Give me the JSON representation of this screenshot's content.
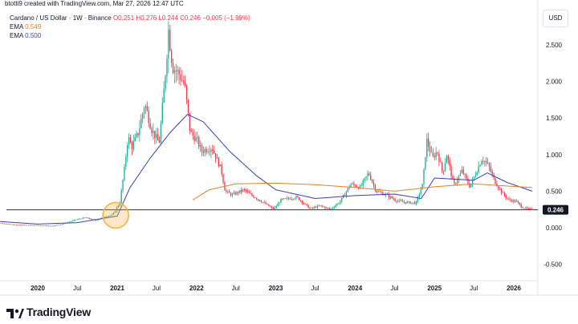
{
  "header": {
    "created_by": "btotti9 created with TradingView.com, Mar 27, 2026 12:47 UTC"
  },
  "legend": {
    "symbol": "Cardano / US Dollar · 1W · Binance",
    "ohlc": "O0.251  H0.276  L0.244  C0.246  −0.005 (−1.99%)",
    "ema_fast_label": "EMA",
    "ema_fast_value": "0.549",
    "ema_slow_label": "EMA",
    "ema_slow_value": "0.500"
  },
  "price_axis": {
    "currency": "USD",
    "last_price_badge": "0.246"
  },
  "brand": {
    "name": "TradingView"
  },
  "colors": {
    "up": "#22ab94",
    "down": "#f23645",
    "up_fill": "#089981",
    "ema_fast": "#e67e22",
    "ema_slow": "#3a3fb8",
    "support_line": "#434651",
    "highlight_circle": "#f5b041",
    "badge_bg": "#131722"
  },
  "chart_data": {
    "type": "candlestick",
    "x_unit": "date (weekly)",
    "y_unit": "USD",
    "xlim": [
      "2019-05",
      "2026-05"
    ],
    "ylim": [
      -0.6,
      2.75
    ],
    "x_ticks": [
      {
        "date": "2020-01-01",
        "label": "2020"
      },
      {
        "date": "2020-07-01",
        "label": "Jul"
      },
      {
        "date": "2021-01-01",
        "label": "2021"
      },
      {
        "date": "2021-07-01",
        "label": "Jul"
      },
      {
        "date": "2022-01-01",
        "label": "2022"
      },
      {
        "date": "2022-07-01",
        "label": "Jul"
      },
      {
        "date": "2023-01-01",
        "label": "2023"
      },
      {
        "date": "2023-07-01",
        "label": "Jul"
      },
      {
        "date": "2024-01-01",
        "label": "2024"
      },
      {
        "date": "2024-07-01",
        "label": "Jul"
      },
      {
        "date": "2025-01-01",
        "label": "2025"
      },
      {
        "date": "2025-07-01",
        "label": "Jul"
      },
      {
        "date": "2026-01-01",
        "label": "2026"
      }
    ],
    "y_ticks": [
      {
        "value": 2.5,
        "label": "2.500"
      },
      {
        "value": 2.0,
        "label": "2.000"
      },
      {
        "value": 1.5,
        "label": "1.500"
      },
      {
        "value": 1.0,
        "label": "1.000"
      },
      {
        "value": 0.5,
        "label": "0.500"
      },
      {
        "value": 0.0,
        "label": "0.000"
      },
      {
        "value": -0.5,
        "label": "-0.500"
      }
    ],
    "price_path": [
      [
        "2019-05-01",
        0.08
      ],
      [
        "2019-07-01",
        0.065
      ],
      [
        "2019-10-01",
        0.04
      ],
      [
        "2020-01-01",
        0.035
      ],
      [
        "2020-03-15",
        0.025
      ],
      [
        "2020-05-01",
        0.05
      ],
      [
        "2020-07-01",
        0.11
      ],
      [
        "2020-08-15",
        0.14
      ],
      [
        "2020-10-01",
        0.1
      ],
      [
        "2020-11-20",
        0.16
      ],
      [
        "2020-12-20",
        0.18
      ],
      [
        "2021-01-20",
        0.35
      ],
      [
        "2021-02-10",
        0.8
      ],
      [
        "2021-02-27",
        1.25
      ],
      [
        "2021-03-15",
        1.1
      ],
      [
        "2021-04-15",
        1.3
      ],
      [
        "2021-05-15",
        1.7
      ],
      [
        "2021-06-15",
        1.35
      ],
      [
        "2021-07-20",
        1.15
      ],
      [
        "2021-08-15",
        2.0
      ],
      [
        "2021-09-01",
        2.7
      ],
      [
        "2021-09-20",
        2.2
      ],
      [
        "2021-10-20",
        2.1
      ],
      [
        "2021-11-15",
        1.95
      ],
      [
        "2021-12-10",
        1.3
      ],
      [
        "2022-01-10",
        1.2
      ],
      [
        "2022-02-01",
        1.05
      ],
      [
        "2022-03-20",
        1.1
      ],
      [
        "2022-05-01",
        0.8
      ],
      [
        "2022-05-20",
        0.5
      ],
      [
        "2022-06-20",
        0.45
      ],
      [
        "2022-07-15",
        0.48
      ],
      [
        "2022-08-15",
        0.52
      ],
      [
        "2022-09-15",
        0.45
      ],
      [
        "2022-11-10",
        0.35
      ],
      [
        "2022-12-30",
        0.25
      ],
      [
        "2023-02-01",
        0.38
      ],
      [
        "2023-04-15",
        0.42
      ],
      [
        "2023-06-15",
        0.26
      ],
      [
        "2023-08-01",
        0.3
      ],
      [
        "2023-09-15",
        0.25
      ],
      [
        "2023-11-01",
        0.36
      ],
      [
        "2023-12-20",
        0.6
      ],
      [
        "2024-02-01",
        0.55
      ],
      [
        "2024-03-10",
        0.75
      ],
      [
        "2024-04-15",
        0.5
      ],
      [
        "2024-06-01",
        0.45
      ],
      [
        "2024-07-10",
        0.38
      ],
      [
        "2024-08-15",
        0.35
      ],
      [
        "2024-10-15",
        0.34
      ],
      [
        "2024-11-15",
        0.6
      ],
      [
        "2024-12-03",
        1.2
      ],
      [
        "2024-12-30",
        0.95
      ],
      [
        "2025-01-20",
        1.05
      ],
      [
        "2025-02-15",
        0.75
      ],
      [
        "2025-03-05",
        1.0
      ],
      [
        "2025-04-07",
        0.58
      ],
      [
        "2025-05-15",
        0.78
      ],
      [
        "2025-06-20",
        0.56
      ],
      [
        "2025-08-15",
        0.95
      ],
      [
        "2025-09-15",
        0.84
      ],
      [
        "2025-10-10",
        0.65
      ],
      [
        "2025-11-15",
        0.48
      ],
      [
        "2025-12-15",
        0.38
      ],
      [
        "2026-01-20",
        0.36
      ],
      [
        "2026-02-15",
        0.28
      ],
      [
        "2026-03-27",
        0.246
      ]
    ],
    "ema_fast": {
      "name": "EMA",
      "value": 0.549,
      "points": [
        [
          "2021-12-15",
          0.38
        ],
        [
          "2022-03-01",
          0.52
        ],
        [
          "2022-07-01",
          0.6
        ],
        [
          "2023-01-01",
          0.61
        ],
        [
          "2023-07-01",
          0.59
        ],
        [
          "2024-01-01",
          0.55
        ],
        [
          "2024-07-01",
          0.5
        ],
        [
          "2025-01-01",
          0.56
        ],
        [
          "2025-07-01",
          0.6
        ],
        [
          "2026-03-27",
          0.549
        ]
      ]
    },
    "ema_slow": {
      "name": "EMA",
      "value": 0.5,
      "points": [
        [
          "2019-05-01",
          0.1
        ],
        [
          "2020-01-01",
          0.05
        ],
        [
          "2020-07-01",
          0.07
        ],
        [
          "2021-01-01",
          0.16
        ],
        [
          "2021-03-01",
          0.55
        ],
        [
          "2021-06-01",
          0.95
        ],
        [
          "2021-09-01",
          1.3
        ],
        [
          "2021-11-20",
          1.55
        ],
        [
          "2022-02-01",
          1.45
        ],
        [
          "2022-06-01",
          1.05
        ],
        [
          "2022-10-01",
          0.72
        ],
        [
          "2023-01-01",
          0.52
        ],
        [
          "2023-07-01",
          0.4
        ],
        [
          "2024-01-01",
          0.44
        ],
        [
          "2024-07-01",
          0.46
        ],
        [
          "2024-11-01",
          0.4
        ],
        [
          "2025-01-01",
          0.68
        ],
        [
          "2025-07-01",
          0.65
        ],
        [
          "2025-09-01",
          0.75
        ],
        [
          "2025-12-01",
          0.62
        ],
        [
          "2026-03-27",
          0.5
        ]
      ]
    },
    "support_level": 0.246,
    "highlight": {
      "date": "2020-12-25",
      "value": 0.17
    },
    "grid": false
  }
}
